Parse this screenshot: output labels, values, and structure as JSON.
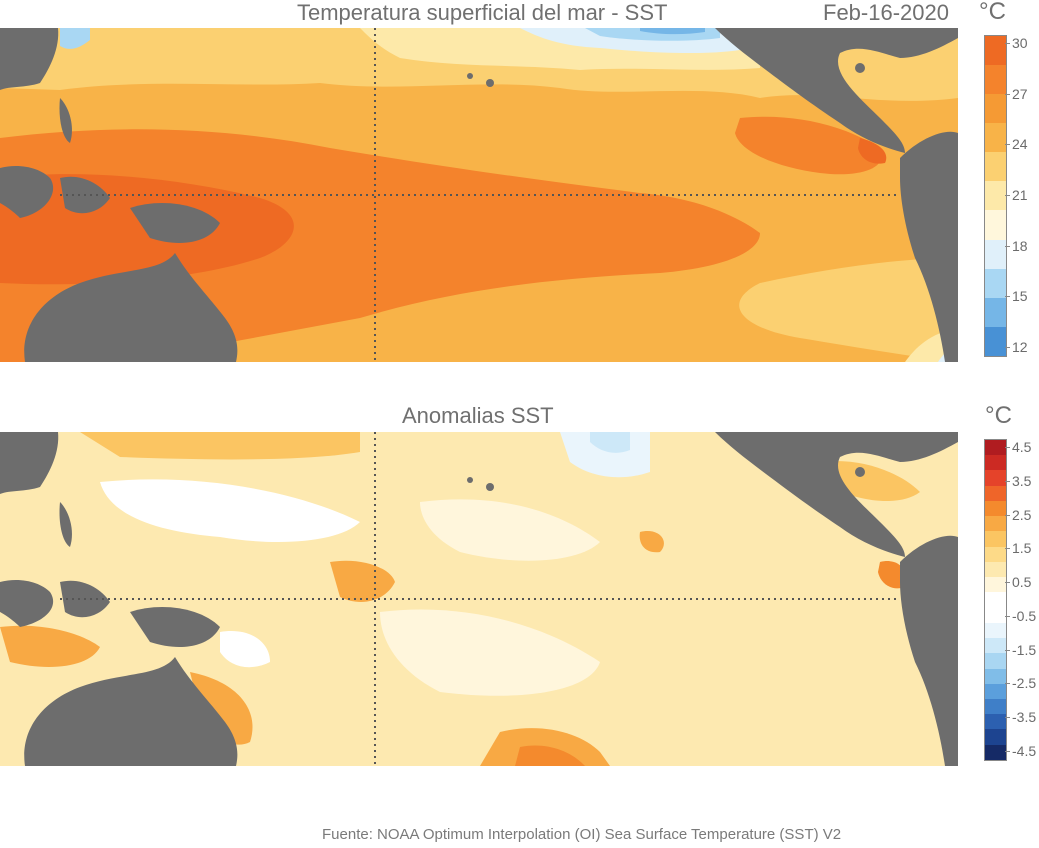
{
  "sst": {
    "title": "Temperatura superficial del mar - SST",
    "date": "Feb-16-2020",
    "unit": "°C",
    "colorbar": {
      "ticks": [
        "30",
        "27",
        "24",
        "21",
        "18",
        "15",
        "12"
      ],
      "colors": [
        "#ee6a23",
        "#f4832c",
        "#f59a34",
        "#f8b348",
        "#fbd071",
        "#fde9a9",
        "#fff7dc",
        "#e0f0fa",
        "#a9d7f3",
        "#75b6e7",
        "#4891d5"
      ]
    }
  },
  "anomaly": {
    "title": "Anomalias SST",
    "unit": "°C",
    "colorbar": {
      "ticks": [
        "4.5",
        "3.5",
        "2.5",
        "1.5",
        "0.5",
        "-0.5",
        "-1.5",
        "-2.5",
        "-3.5",
        "-4.5"
      ],
      "colors": [
        "#b01c20",
        "#cc2a23",
        "#e5432a",
        "#ef6529",
        "#f48a2d",
        "#f8a944",
        "#fbc562",
        "#fdda88",
        "#fde9b0",
        "#fff6dc",
        "#ffffff",
        "#ffffff",
        "#eaf5fc",
        "#cde8f8",
        "#a9d6f2",
        "#80bde8",
        "#5b9fdc",
        "#3f7fc8",
        "#2c60b0",
        "#1d4490",
        "#152a66"
      ]
    }
  },
  "source": "Fuente: NOAA Optimum Interpolation (OI) Sea Surface Temperature (SST) V2"
}
